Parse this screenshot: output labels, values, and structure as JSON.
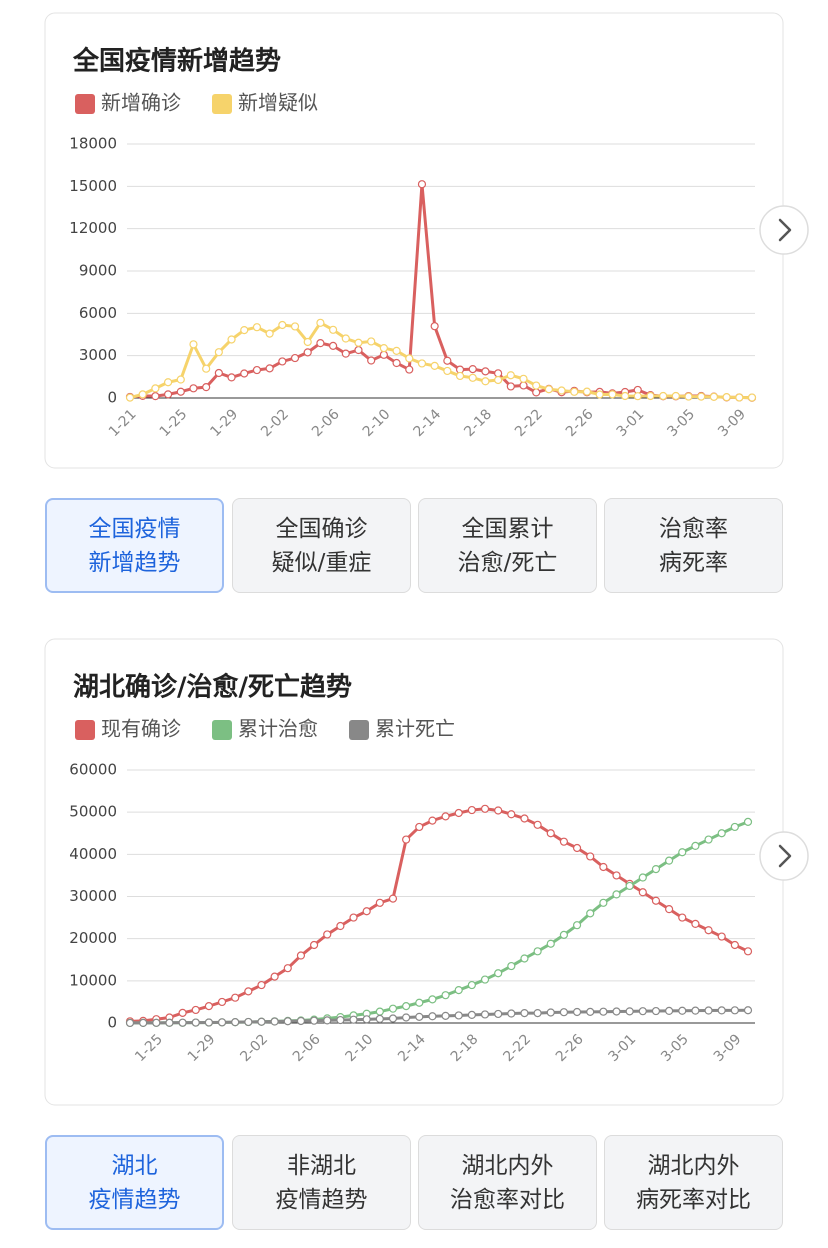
{
  "chart_data": [
    {
      "type": "line",
      "title": "全国疫情新增趋势",
      "categories": [
        "1-21",
        null,
        null,
        null,
        "1-25",
        null,
        null,
        null,
        "1-29",
        null,
        null,
        null,
        "2-02",
        null,
        null,
        null,
        "2-06",
        null,
        null,
        null,
        "2-10",
        null,
        null,
        null,
        "2-14",
        null,
        null,
        null,
        "2-18",
        null,
        null,
        null,
        "2-22",
        null,
        null,
        null,
        "2-26",
        null,
        null,
        null,
        "3-01",
        null,
        null,
        null,
        "3-05",
        null,
        null,
        null,
        "3-09",
        null
      ],
      "series": [
        {
          "name": "新增确诊",
          "color": "#d9605f",
          "values": [
            77,
            149,
            131,
            259,
            444,
            688,
            769,
            1771,
            1459,
            1737,
            1981,
            2099,
            2590,
            2829,
            3235,
            3887,
            3694,
            3143,
            3399,
            2656,
            3062,
            2478,
            2015,
            15152,
            5090,
            2641,
            2009,
            2048,
            1886,
            1749,
            820,
            889,
            397,
            648,
            409,
            508,
            406,
            433,
            327,
            427,
            573,
            202,
            125,
            119,
            139,
            143,
            99,
            44,
            40,
            19
          ]
        },
        {
          "name": "新增疑似",
          "color": "#f6d36b",
          "values": [
            27,
            257,
            680,
            1118,
            1309,
            3806,
            2077,
            3248,
            4148,
            4812,
            5019,
            4562,
            5173,
            5072,
            3971,
            5328,
            4833,
            4214,
            3916,
            4008,
            3536,
            3342,
            2807,
            2450,
            2277,
            1918,
            1563,
            1432,
            1185,
            1277,
            1614,
            1361,
            882,
            620,
            530,
            439,
            452,
            248,
            258,
            141,
            129,
            143,
            143,
            143,
            102,
            99,
            84,
            60,
            36,
            31
          ]
        }
      ],
      "ylim": [
        0,
        18000
      ],
      "yticks": [
        0,
        3000,
        6000,
        9000,
        12000,
        15000,
        18000
      ],
      "grid": true
    },
    {
      "type": "line",
      "title": "湖北确诊/治愈/死亡趋势",
      "categories": [
        null,
        null,
        "1-25",
        null,
        null,
        null,
        "1-29",
        null,
        null,
        null,
        "2-02",
        null,
        null,
        null,
        "2-06",
        null,
        null,
        null,
        "2-10",
        null,
        null,
        null,
        "2-14",
        null,
        null,
        null,
        "2-18",
        null,
        null,
        null,
        "2-22",
        null,
        null,
        null,
        "2-26",
        null,
        null,
        null,
        "3-01",
        null,
        null,
        null,
        "3-05",
        null,
        null,
        null,
        "3-09",
        null
      ],
      "series": [
        {
          "name": "现有确诊",
          "color": "#d9605f",
          "values": [
            400,
            500,
            900,
            1300,
            2400,
            3100,
            4000,
            5000,
            6000,
            7500,
            9000,
            11000,
            13000,
            16000,
            18500,
            21000,
            23000,
            25000,
            26500,
            28500,
            29500,
            43500,
            46500,
            48000,
            49000,
            49800,
            50500,
            50800,
            50400,
            49500,
            48500,
            47000,
            45000,
            43000,
            41500,
            39500,
            37000,
            35000,
            33000,
            31000,
            29000,
            27000,
            25000,
            23500,
            22000,
            20500,
            18500,
            17000
          ]
        },
        {
          "name": "累计治愈",
          "color": "#7cbf83",
          "values": [
            30,
            30,
            40,
            50,
            50,
            80,
            100,
            140,
            170,
            220,
            300,
            400,
            500,
            600,
            800,
            1100,
            1400,
            1800,
            2200,
            2700,
            3400,
            4000,
            4800,
            5600,
            6600,
            7800,
            9000,
            10300,
            11800,
            13500,
            15300,
            17000,
            18800,
            20900,
            23200,
            26000,
            28500,
            30500,
            32500,
            34500,
            36500,
            38500,
            40500,
            42000,
            43500,
            45000,
            46500,
            47700
          ]
        },
        {
          "name": "累计死亡",
          "color": "#888888",
          "values": [
            17,
            24,
            40,
            52,
            76,
            100,
            125,
            162,
            204,
            249,
            294,
            350,
            414,
            479,
            549,
            618,
            699,
            780,
            871,
            974,
            1068,
            1310,
            1457,
            1596,
            1696,
            1789,
            1921,
            2029,
            2144,
            2250,
            2346,
            2346,
            2495,
            2563,
            2615,
            2641,
            2682,
            2727,
            2761,
            2803,
            2835,
            2871,
            2902,
            2931,
            2959,
            2986,
            3008,
            3024
          ]
        }
      ],
      "ylim": [
        0,
        60000
      ],
      "yticks": [
        0,
        10000,
        20000,
        30000,
        40000,
        50000,
        60000
      ],
      "grid": true
    }
  ],
  "tabs": [
    [
      [
        "全国疫情",
        "新增趋势"
      ],
      [
        "全国确诊",
        "疑似/重症"
      ],
      [
        "全国累计",
        "治愈/死亡"
      ],
      [
        "治愈率",
        "病死率"
      ]
    ],
    [
      [
        "湖北",
        "疫情趋势"
      ],
      [
        "非湖北",
        "疫情趋势"
      ],
      [
        "湖北内外",
        "治愈率对比"
      ],
      [
        "湖北内外",
        "病死率对比"
      ]
    ]
  ]
}
